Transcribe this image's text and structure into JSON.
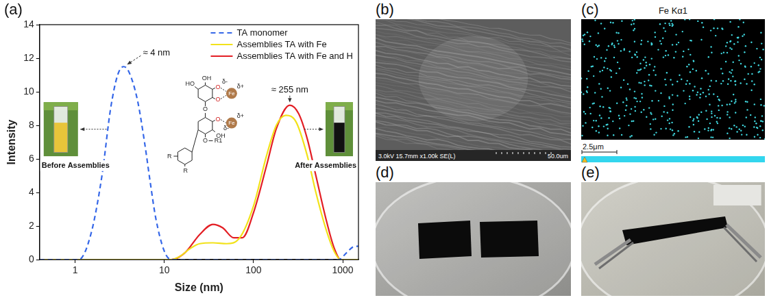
{
  "chart_data": {
    "type": "line",
    "panel_label": "(a)",
    "x_label": "Size (nm)",
    "y_label": "Intensity",
    "log": "x",
    "xlim": [
      0.4,
      1500
    ],
    "xticks": [
      1,
      10,
      100,
      1000
    ],
    "ylim": [
      0,
      14
    ],
    "yticks": [
      0,
      2,
      4,
      6,
      8,
      10,
      12,
      14
    ],
    "grid": false,
    "legend": "upper right",
    "series": [
      {
        "name": "TA monomer",
        "color": "#3567e8",
        "line_style": "dashed",
        "x": [
          0.4,
          1.1,
          1.5,
          2,
          2.5,
          3,
          3.5,
          4,
          5,
          6,
          7,
          8,
          10,
          12,
          100,
          900,
          1100,
          1300,
          1500
        ],
        "values": [
          0,
          0,
          1.5,
          5,
          9,
          11,
          11.5,
          11.2,
          9.5,
          7,
          4.5,
          2.5,
          0.5,
          0,
          0,
          0,
          0.4,
          0.75,
          0.8
        ]
      },
      {
        "name": "Assemblies TA with Fe",
        "color": "#f2e21a",
        "line_style": "solid",
        "x": [
          0.4,
          12,
          15,
          20,
          25,
          35,
          50,
          70,
          100,
          140,
          180,
          230,
          300,
          400,
          500,
          650,
          800,
          950,
          1500
        ],
        "values": [
          0,
          0,
          0.2,
          0.7,
          0.95,
          1.0,
          0.95,
          1.3,
          3.2,
          6.2,
          8.0,
          8.6,
          8.2,
          6.2,
          4.0,
          1.8,
          0.5,
          0,
          0
        ]
      },
      {
        "name": "Assemblies TA with Fe and H",
        "color": "#e31e24",
        "line_style": "solid",
        "x": [
          0.4,
          12,
          17,
          25,
          35,
          45,
          60,
          75,
          100,
          140,
          180,
          255,
          320,
          400,
          500,
          650,
          800,
          950,
          1500
        ],
        "values": [
          0,
          0,
          0.4,
          1.5,
          2.1,
          1.9,
          1.3,
          1.3,
          2.8,
          5.6,
          7.8,
          9.2,
          8.7,
          7.2,
          5.0,
          2.4,
          0.7,
          0,
          0
        ]
      }
    ],
    "annotations": {
      "monomer_peak": "≈ 4 nm",
      "assembly_peak": "≈ 255 nm",
      "before": "Before Assemblies",
      "after": "After Assemblies"
    },
    "structure_labels": {
      "ho": "HO",
      "oh": "OH",
      "o": "O",
      "fe": "Fe",
      "delta_plus": "δ+",
      "delta_minus": "δ-",
      "r": "R",
      "r1": "R1"
    }
  },
  "images": [
    {
      "label": "(b)",
      "type": "sem",
      "info": "3.0kV 15.7mm x1.00k SE(L)",
      "scale": "50.0um"
    },
    {
      "label": "(c)",
      "type": "map",
      "title": "Fe Kα1",
      "scale": "2.5μm"
    },
    {
      "label": "(d)",
      "type": "photo"
    },
    {
      "label": "(e)",
      "type": "photo"
    }
  ]
}
